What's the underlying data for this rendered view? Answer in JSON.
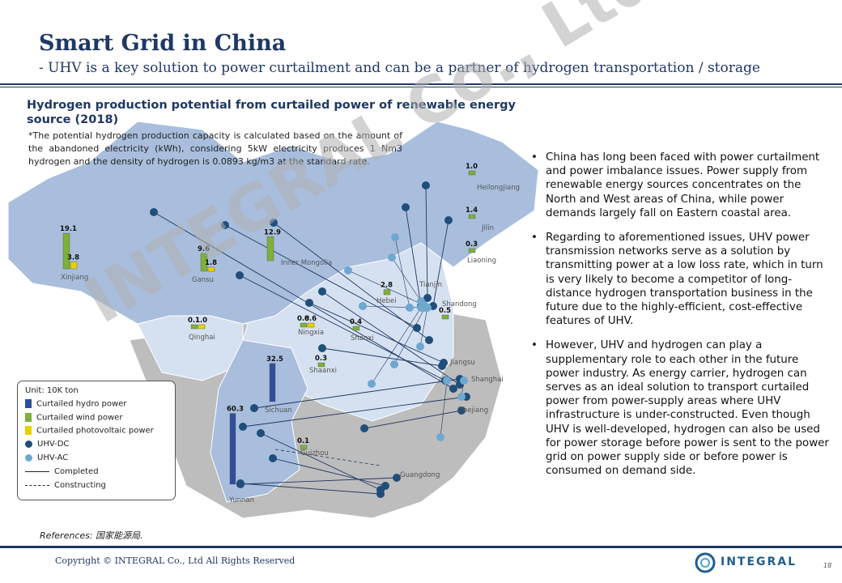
{
  "header": {
    "title": "Smart Grid in China",
    "subtitle": "- UHV is a key solution to power curtailment and can be a partner of hydrogen transportation / storage"
  },
  "map": {
    "title": "Hydrogen production potential from curtailed power of renewable energy source (2018)",
    "note": "*The potential hydrogen production capacity is calculated based on the amount of the abandoned electricity (kWh), considering 5kW electricity produces 1 Nm3 hydrogen and the density of hydrogen is 0.0893 kg/m3 at the standard rate.",
    "provinces": [
      {
        "name": "Xinjiang",
        "values": [
          "19.1",
          "3.8"
        ]
      },
      {
        "name": "Gansu",
        "values": [
          "9.6",
          "1.8"
        ]
      },
      {
        "name": "Inner Mongolia",
        "values": [
          "12.9"
        ]
      },
      {
        "name": "Qinghai",
        "values": [
          "0.1",
          "1.0"
        ]
      },
      {
        "name": "Ningxia",
        "values": [
          "0.8",
          "0.6"
        ]
      },
      {
        "name": "Shanxi",
        "values": [
          "0.4"
        ]
      },
      {
        "name": "Shaanxi",
        "values": [
          "0.3"
        ]
      },
      {
        "name": "Hebei",
        "values": [
          "2.8"
        ]
      },
      {
        "name": "Tianjin",
        "values": []
      },
      {
        "name": "Shandong",
        "values": [
          "0.5"
        ]
      },
      {
        "name": "Heilongjiang",
        "values": [
          "1.0"
        ]
      },
      {
        "name": "Jilin",
        "values": [
          "1.4"
        ]
      },
      {
        "name": "Liaoning",
        "values": [
          "0.3"
        ]
      },
      {
        "name": "Sichuan",
        "values": [
          "32.5"
        ]
      },
      {
        "name": "Yunnan",
        "values": [
          "60.3"
        ]
      },
      {
        "name": "Guizhou",
        "values": [
          "0.1"
        ]
      },
      {
        "name": "Guangdong",
        "values": []
      },
      {
        "name": "Jiangsu",
        "values": []
      },
      {
        "name": "Shanghai",
        "values": []
      },
      {
        "name": "Zhejiang",
        "values": []
      }
    ],
    "hydro": {
      "Sichuan": 32.5,
      "Yunnan": 60.3
    },
    "colors": {
      "hydro": "#2f4f9a",
      "wind": "#7db13a",
      "solar": "#e8d200",
      "dc": "#1f4e79",
      "ac": "#6fa8cf",
      "land_dark": "#a9bedd",
      "land_light": "#d5e1f0",
      "land_grey": "#bdbdbd"
    }
  },
  "legend": {
    "unit": "Unit: 10K ton",
    "hydro": "Curtailed hydro power",
    "wind": "Curtailed wind power",
    "solar": "Curtailed photovoltaic power",
    "dc": "UHV-DC",
    "ac": "UHV-AC",
    "completed": "Completed",
    "constructing": "Constructing"
  },
  "bullets": [
    "China has long been faced with power curtailment and power imbalance issues. Power supply from renewable energy sources concentrates on the North and West areas of China, while power demands largely fall on Eastern coastal area.",
    "Regarding to aforementioned issues, UHV power transmission networks serve as a solution by transmitting power at a low loss rate, which in turn is very likely to become a competitor of long-distance hydrogen transportation business in the future due to the highly-efficient, cost-effective features of UHV.",
    "However, UHV and hydrogen can play a supplementary role to each other in the future power industry. As energy carrier, hydrogen can serves as an ideal solution to transport curtailed power from power-supply areas where UHV infrastructure is under-constructed. Even though UHV is well-developed, hydrogen can also be used for power storage before power is sent to the power grid on power supply side or before power is consumed on demand side."
  ],
  "bullet_symbol": "•",
  "footer": {
    "references": "References: 国家能源局.",
    "copyright": "Copyright © INTEGRAL Co., Ltd All Rights Reserved",
    "logo": "INTEGRAL",
    "page": "18"
  },
  "watermark": "INTEGRAL Co., Ltd"
}
